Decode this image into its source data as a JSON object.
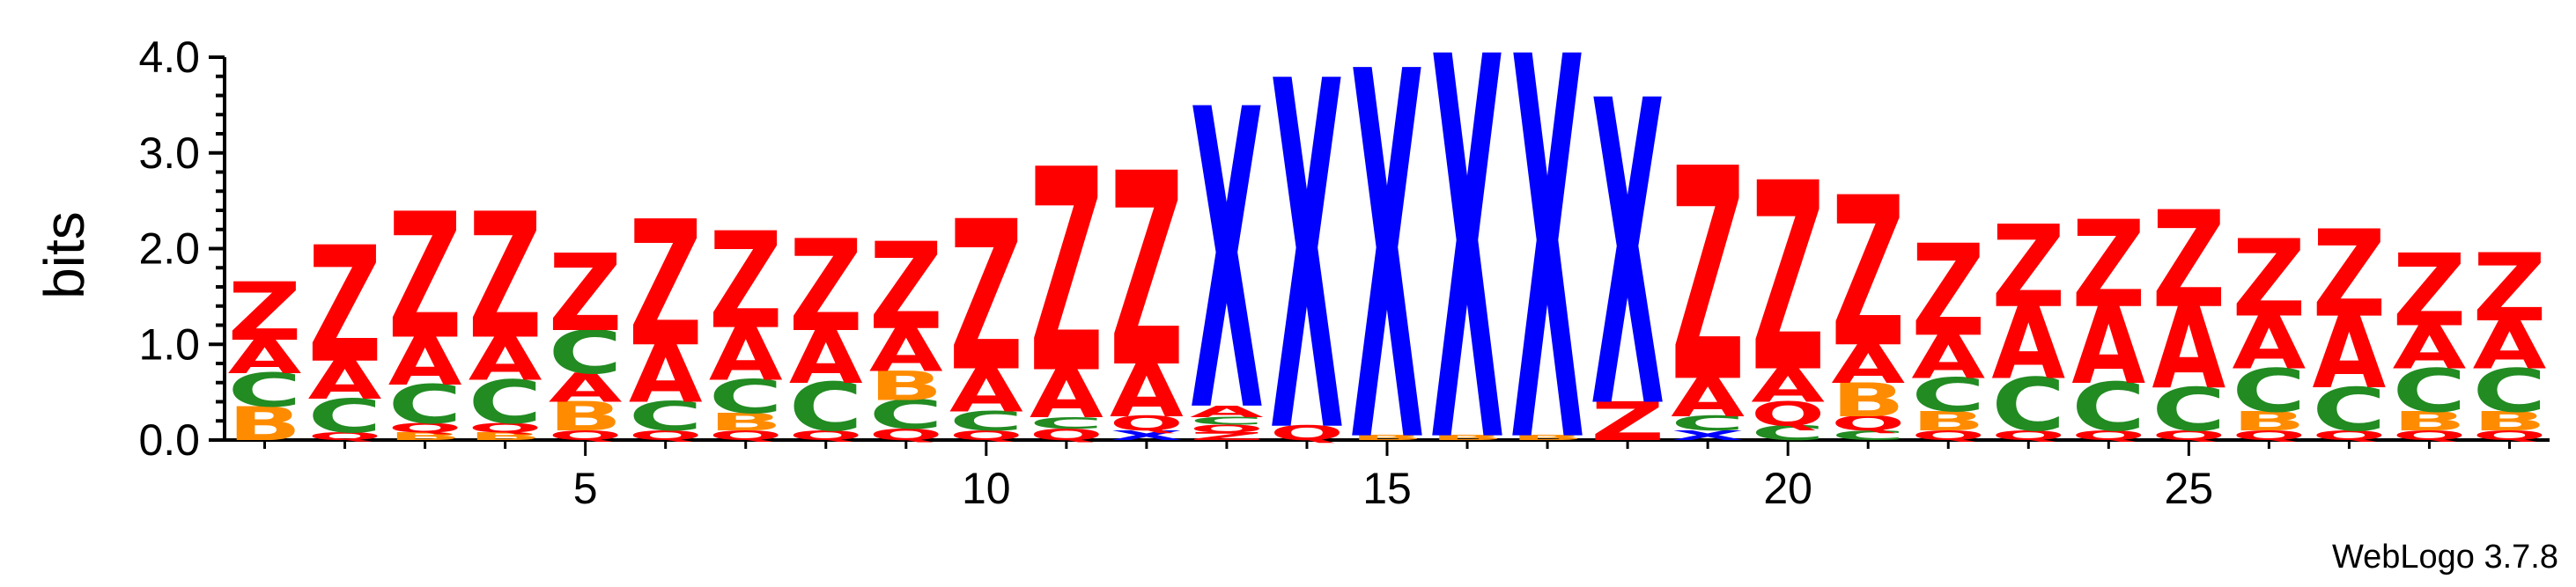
{
  "chart_data": {
    "type": "sequence-logo",
    "ylabel": "bits",
    "ylim": [
      0,
      4.0
    ],
    "y_ticks": [
      "0.0",
      "1.0",
      "2.0",
      "3.0",
      "4.0"
    ],
    "x_tick_positions": [
      5,
      10,
      15,
      20,
      25
    ],
    "x_ticks": [
      "5",
      "10",
      "15",
      "20",
      "25"
    ],
    "footer": "WebLogo 3.7.8",
    "colors": {
      "Z": "#ff0000",
      "A": "#ff0000",
      "Q": "#ff0000",
      "X": "#0000ff",
      "C": "#228b22",
      "B": "#ff8c00"
    },
    "positions": [
      {
        "pos": 1,
        "stack": [
          [
            "B",
            0.35
          ],
          [
            "C",
            0.35
          ],
          [
            "A",
            0.35
          ],
          [
            "Z",
            0.6
          ]
        ]
      },
      {
        "pos": 2,
        "stack": [
          [
            "Q",
            0.08
          ],
          [
            "C",
            0.35
          ],
          [
            "A",
            0.4
          ],
          [
            "Z",
            1.2
          ]
        ]
      },
      {
        "pos": 3,
        "stack": [
          [
            "B",
            0.08
          ],
          [
            "Q",
            0.1
          ],
          [
            "C",
            0.4
          ],
          [
            "A",
            0.5
          ],
          [
            "Z",
            1.3
          ]
        ]
      },
      {
        "pos": 4,
        "stack": [
          [
            "B",
            0.08
          ],
          [
            "Q",
            0.1
          ],
          [
            "C",
            0.45
          ],
          [
            "A",
            0.45
          ],
          [
            "Z",
            1.3
          ]
        ]
      },
      {
        "pos": 5,
        "stack": [
          [
            "Q",
            0.1
          ],
          [
            "B",
            0.3
          ],
          [
            "A",
            0.3
          ],
          [
            "C",
            0.45
          ],
          [
            "Z",
            0.8
          ]
        ]
      },
      {
        "pos": 6,
        "stack": [
          [
            "Q",
            0.1
          ],
          [
            "C",
            0.3
          ],
          [
            "A",
            0.6
          ],
          [
            "Z",
            1.3
          ]
        ]
      },
      {
        "pos": 7,
        "stack": [
          [
            "Q",
            0.1
          ],
          [
            "B",
            0.18
          ],
          [
            "C",
            0.35
          ],
          [
            "A",
            0.55
          ],
          [
            "Z",
            1.0
          ]
        ]
      },
      {
        "pos": 8,
        "stack": [
          [
            "Q",
            0.1
          ],
          [
            "C",
            0.5
          ],
          [
            "A",
            0.55
          ],
          [
            "Z",
            0.95
          ]
        ]
      },
      {
        "pos": 9,
        "stack": [
          [
            "Q",
            0.12
          ],
          [
            "C",
            0.3
          ],
          [
            "B",
            0.3
          ],
          [
            "A",
            0.45
          ],
          [
            "Z",
            0.9
          ]
        ]
      },
      {
        "pos": 10,
        "stack": [
          [
            "Q",
            0.1
          ],
          [
            "C",
            0.2
          ],
          [
            "A",
            0.45
          ],
          [
            "Z",
            1.55
          ]
        ]
      },
      {
        "pos": 11,
        "stack": [
          [
            "Q",
            0.12
          ],
          [
            "C",
            0.12
          ],
          [
            "A",
            0.5
          ],
          [
            "Z",
            2.1
          ]
        ]
      },
      {
        "pos": 12,
        "stack": [
          [
            "X",
            0.1
          ],
          [
            "Q",
            0.15
          ],
          [
            "A",
            0.55
          ],
          [
            "Z",
            2.0
          ]
        ]
      },
      {
        "pos": 13,
        "stack": [
          [
            "Z",
            0.08
          ],
          [
            "Q",
            0.08
          ],
          [
            "C",
            0.08
          ],
          [
            "A",
            0.12
          ],
          [
            "X",
            3.1
          ]
        ]
      },
      {
        "pos": 14,
        "stack": [
          [
            "Q",
            0.15
          ],
          [
            "X",
            3.6
          ]
        ]
      },
      {
        "pos": 15,
        "stack": [
          [
            "B",
            0.05
          ],
          [
            "X",
            3.8
          ]
        ]
      },
      {
        "pos": 16,
        "stack": [
          [
            "B",
            0.05
          ],
          [
            "X",
            3.95
          ]
        ]
      },
      {
        "pos": 17,
        "stack": [
          [
            "B",
            0.05
          ],
          [
            "X",
            3.95
          ]
        ]
      },
      {
        "pos": 18,
        "stack": [
          [
            "Z",
            0.4
          ],
          [
            "X",
            3.15
          ]
        ]
      },
      {
        "pos": 19,
        "stack": [
          [
            "X",
            0.1
          ],
          [
            "C",
            0.15
          ],
          [
            "A",
            0.4
          ],
          [
            "Z",
            2.2
          ]
        ]
      },
      {
        "pos": 20,
        "stack": [
          [
            "C",
            0.15
          ],
          [
            "Q",
            0.25
          ],
          [
            "A",
            0.35
          ],
          [
            "Z",
            1.95
          ]
        ]
      },
      {
        "pos": 21,
        "stack": [
          [
            "C",
            0.1
          ],
          [
            "Q",
            0.15
          ],
          [
            "B",
            0.35
          ],
          [
            "A",
            0.4
          ],
          [
            "Z",
            1.55
          ]
        ]
      },
      {
        "pos": 22,
        "stack": [
          [
            "Q",
            0.1
          ],
          [
            "B",
            0.2
          ],
          [
            "C",
            0.35
          ],
          [
            "A",
            0.45
          ],
          [
            "Z",
            0.95
          ]
        ]
      },
      {
        "pos": 23,
        "stack": [
          [
            "Q",
            0.1
          ],
          [
            "C",
            0.55
          ],
          [
            "A",
            0.75
          ],
          [
            "Z",
            0.85
          ]
        ]
      },
      {
        "pos": 24,
        "stack": [
          [
            "Q",
            0.1
          ],
          [
            "C",
            0.5
          ],
          [
            "A",
            0.8
          ],
          [
            "Z",
            0.9
          ]
        ]
      },
      {
        "pos": 25,
        "stack": [
          [
            "Q",
            0.1
          ],
          [
            "C",
            0.45
          ],
          [
            "A",
            0.85
          ],
          [
            "Z",
            1.0
          ]
        ]
      },
      {
        "pos": 26,
        "stack": [
          [
            "Q",
            0.1
          ],
          [
            "B",
            0.2
          ],
          [
            "C",
            0.45
          ],
          [
            "A",
            0.55
          ],
          [
            "Z",
            0.8
          ]
        ]
      },
      {
        "pos": 27,
        "stack": [
          [
            "Q",
            0.1
          ],
          [
            "C",
            0.45
          ],
          [
            "A",
            0.75
          ],
          [
            "Z",
            0.9
          ]
        ]
      },
      {
        "pos": 28,
        "stack": [
          [
            "Q",
            0.1
          ],
          [
            "B",
            0.2
          ],
          [
            "C",
            0.45
          ],
          [
            "A",
            0.45
          ],
          [
            "Z",
            0.75
          ]
        ]
      },
      {
        "pos": 29,
        "stack": [
          [
            "Q",
            0.1
          ],
          [
            "B",
            0.2
          ],
          [
            "C",
            0.45
          ],
          [
            "A",
            0.5
          ],
          [
            "Z",
            0.7
          ]
        ]
      }
    ]
  }
}
